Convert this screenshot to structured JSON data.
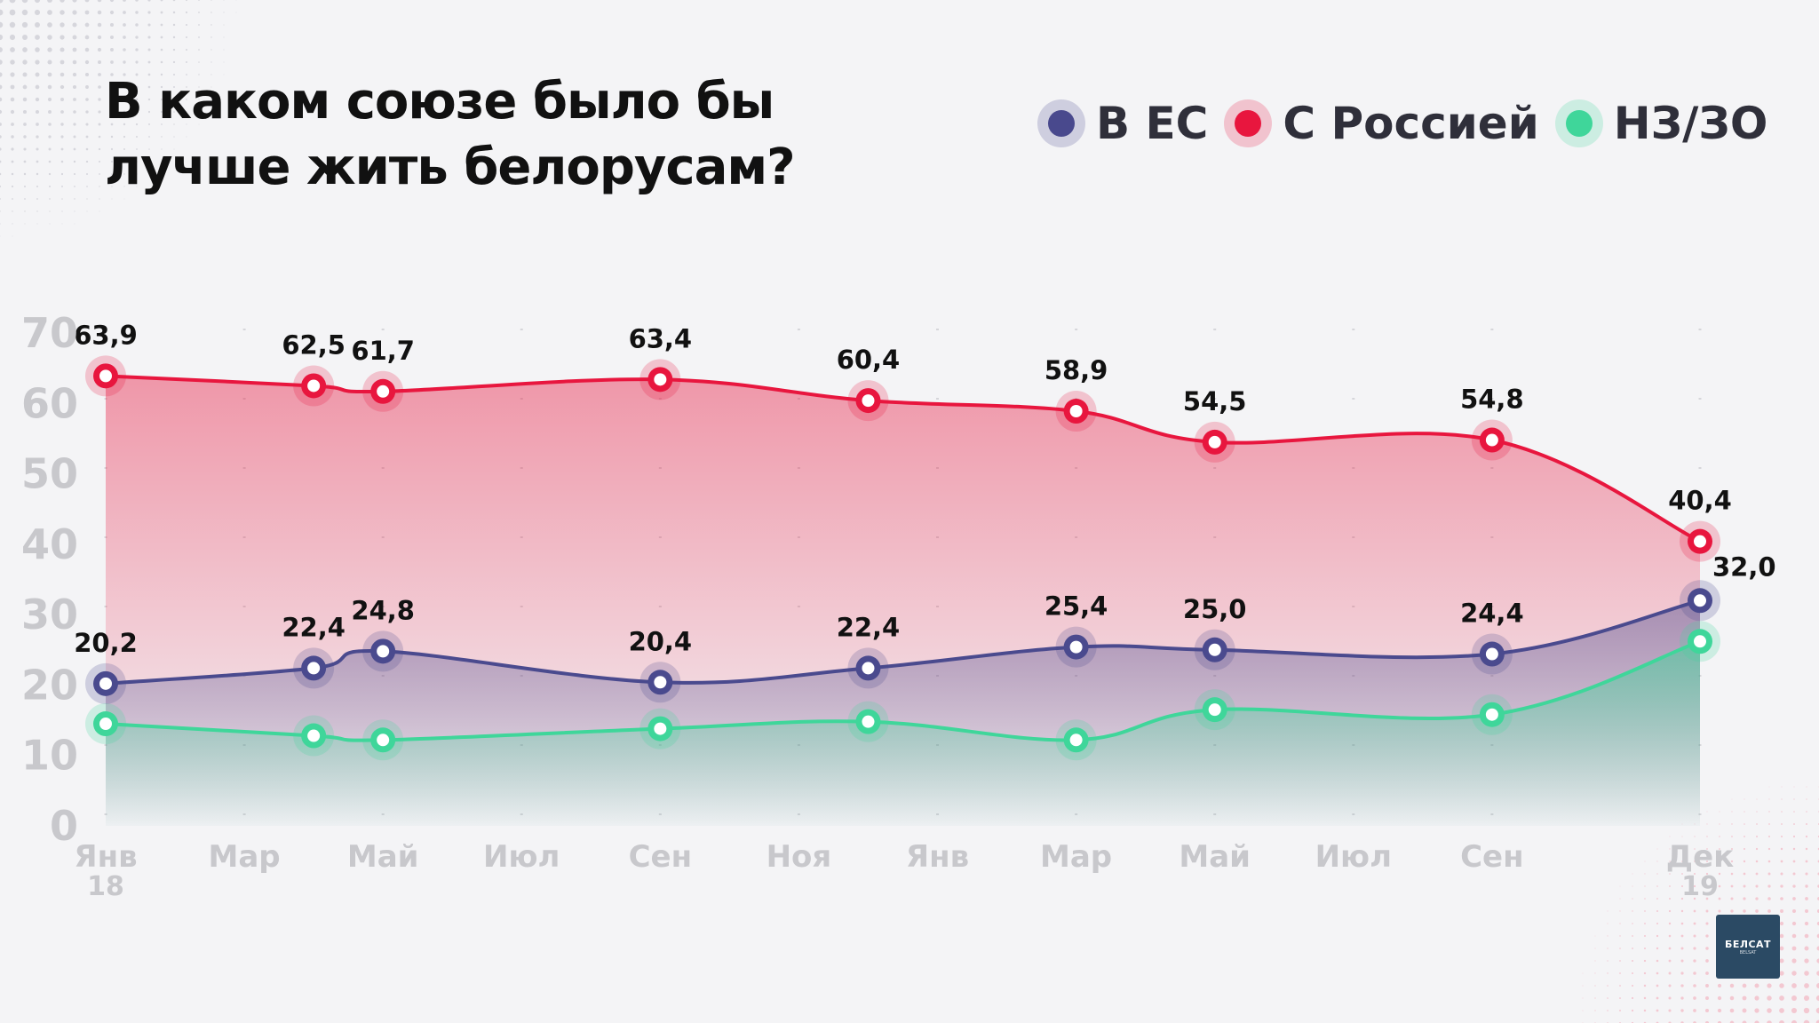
{
  "title": "В каком союзе было бы лучше жить белорусам?",
  "logo": {
    "main": "БЕЛСАТ",
    "sub": "BELSAT"
  },
  "colors": {
    "eu": "#4a4a8e",
    "russia": "#e8163e",
    "nz": "#3fd69a",
    "axis_text": "#c8c8cc",
    "label_text": "#111111"
  },
  "chart_data": {
    "type": "line",
    "title": "В каком союзе было бы лучше жить белорусам?",
    "ylim": [
      0,
      70
    ],
    "y_ticks": [
      "0",
      "10",
      "20",
      "30",
      "40",
      "50",
      "60",
      "70"
    ],
    "x_ticks": [
      {
        "label": "Янв",
        "sub": "18"
      },
      {
        "label": "Мар",
        "sub": ""
      },
      {
        "label": "Май",
        "sub": ""
      },
      {
        "label": "Июл",
        "sub": ""
      },
      {
        "label": "Сен",
        "sub": ""
      },
      {
        "label": "Ноя",
        "sub": ""
      },
      {
        "label": "Янв",
        "sub": ""
      },
      {
        "label": "Мар",
        "sub": ""
      },
      {
        "label": "Май",
        "sub": ""
      },
      {
        "label": "Июл",
        "sub": ""
      },
      {
        "label": "Сен",
        "sub": ""
      },
      {
        "label": "Дек",
        "sub": "19"
      }
    ],
    "legend_position": "top-right",
    "series": [
      {
        "key": "russia",
        "name": "С Россией",
        "points": [
          {
            "x": "2018-01",
            "y": 63.9,
            "label": "63,9"
          },
          {
            "x": "2018-04",
            "y": 62.5,
            "label": "62,5"
          },
          {
            "x": "2018-05",
            "y": 61.7,
            "label": "61,7"
          },
          {
            "x": "2018-09",
            "y": 63.4,
            "label": "63,4"
          },
          {
            "x": "2018-12",
            "y": 60.4,
            "label": "60,4"
          },
          {
            "x": "2019-03",
            "y": 58.9,
            "label": "58,9"
          },
          {
            "x": "2019-05",
            "y": 54.5,
            "label": "54,5"
          },
          {
            "x": "2019-09",
            "y": 54.8,
            "label": "54,8"
          },
          {
            "x": "2019-12",
            "y": 40.4,
            "label": "40,4"
          }
        ]
      },
      {
        "key": "eu",
        "name": "В ЕС",
        "points": [
          {
            "x": "2018-01",
            "y": 20.2,
            "label": "20,2"
          },
          {
            "x": "2018-04",
            "y": 22.4,
            "label": "22,4"
          },
          {
            "x": "2018-05",
            "y": 24.8,
            "label": "24,8"
          },
          {
            "x": "2018-09",
            "y": 20.4,
            "label": "20,4"
          },
          {
            "x": "2018-12",
            "y": 22.4,
            "label": "22,4"
          },
          {
            "x": "2019-03",
            "y": 25.4,
            "label": "25,4"
          },
          {
            "x": "2019-05",
            "y": 25.0,
            "label": "25,0"
          },
          {
            "x": "2019-09",
            "y": 24.4,
            "label": "24,4"
          },
          {
            "x": "2019-12",
            "y": 32.0,
            "label": "32,0"
          }
        ]
      },
      {
        "key": "nz",
        "name": "НЗ/ЗО",
        "points": [
          {
            "x": "2018-01",
            "y": 14.5,
            "label": ""
          },
          {
            "x": "2018-04",
            "y": 12.8,
            "label": ""
          },
          {
            "x": "2018-05",
            "y": 12.2,
            "label": ""
          },
          {
            "x": "2018-09",
            "y": 13.8,
            "label": ""
          },
          {
            "x": "2018-12",
            "y": 14.8,
            "label": ""
          },
          {
            "x": "2019-03",
            "y": 12.2,
            "label": ""
          },
          {
            "x": "2019-05",
            "y": 16.5,
            "label": ""
          },
          {
            "x": "2019-09",
            "y": 15.8,
            "label": ""
          },
          {
            "x": "2019-12",
            "y": 26.2,
            "label": ""
          }
        ]
      }
    ]
  }
}
